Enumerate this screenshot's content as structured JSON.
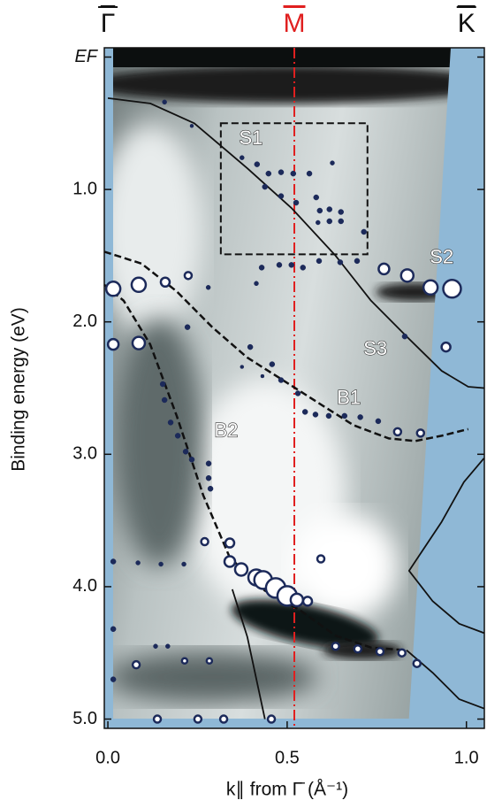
{
  "chart_data": {
    "type": "scatter",
    "xlabel": "k∥ from Γ̄ (Å⁻¹)",
    "ylabel": "Binding energy (eV)",
    "xlim": [
      -0.01,
      1.05
    ],
    "ylim": [
      -0.07,
      5.07
    ],
    "xticks": [
      {
        "value": 0,
        "label": "0.0"
      },
      {
        "value": 0.5,
        "label": "0.5"
      },
      {
        "value": 1,
        "label": "1.0"
      }
    ],
    "yticks": [
      {
        "value": 0,
        "label": "EF"
      },
      {
        "value": 1,
        "label": "1.0"
      },
      {
        "value": 2,
        "label": "2.0"
      },
      {
        "value": 3,
        "label": "3.0"
      },
      {
        "value": 4,
        "label": "4.0"
      },
      {
        "value": 5,
        "label": "5.0"
      }
    ],
    "symmetry_points": [
      {
        "label": "Γ",
        "x": 0,
        "color": "#111111"
      },
      {
        "label": "M",
        "x": 0.52,
        "color": "#e02020"
      },
      {
        "label": "K",
        "x": 1.0,
        "color": "#111111"
      }
    ],
    "color": "#1c2a5a",
    "open_points": {
      "x": [
        0.015,
        0.086,
        0.16,
        0.224,
        0.015,
        0.086,
        0.77,
        0.835,
        0.9,
        0.96,
        0.943,
        0.34,
        0.27,
        0.34,
        0.372,
        0.414,
        0.433,
        0.468,
        0.5,
        0.527,
        0.557,
        0.594,
        0.635,
        0.697,
        0.759,
        0.82,
        0.862,
        0.079,
        0.214,
        0.283,
        0.138,
        0.251,
        0.323,
        0.456,
        0.808,
        0.872
      ],
      "y": [
        1.75,
        1.72,
        1.7,
        1.65,
        2.17,
        2.16,
        1.6,
        1.65,
        1.74,
        1.75,
        2.19,
        3.67,
        3.66,
        3.81,
        3.87,
        3.93,
        3.95,
        4.01,
        4.07,
        4.1,
        4.11,
        3.79,
        4.45,
        4.47,
        4.49,
        4.5,
        4.58,
        4.59,
        4.56,
        4.56,
        5.0,
        5.0,
        5.0,
        5.0,
        2.83,
        2.84
      ],
      "size": [
        8,
        8,
        5,
        4,
        6,
        7,
        6,
        7,
        8,
        10,
        5,
        5,
        4,
        6,
        7,
        9,
        10,
        11,
        11,
        7,
        5,
        4,
        4,
        4,
        4,
        4,
        4,
        4,
        3,
        3,
        4,
        4,
        4,
        4,
        4,
        4
      ]
    },
    "filled_points": {
      "x": [
        0.158,
        0.234,
        0.374,
        0.416,
        0.448,
        0.483,
        0.517,
        0.562,
        0.626,
        0.438,
        0.483,
        0.525,
        0.581,
        0.591,
        0.618,
        0.65,
        0.618,
        0.65,
        0.586,
        0.714,
        0.429,
        0.478,
        0.512,
        0.544,
        0.589,
        0.648,
        0.695,
        0.414,
        0.28,
        0.222,
        0.397,
        0.458,
        0.483,
        0.53,
        0.55,
        0.579,
        0.616,
        0.66,
        0.704,
        0.754,
        0.828,
        0.153,
        0.158,
        0.175,
        0.195,
        0.217,
        0.234,
        0.281,
        0.281,
        0.286,
        0.084,
        0.148,
        0.212,
        0.015,
        0.015,
        0.015,
        0.133,
        0.167,
        0.374,
        0.431
      ],
      "y": [
        0.34,
        0.52,
        0.76,
        0.81,
        0.88,
        0.87,
        0.88,
        0.88,
        0.8,
        0.98,
        1.05,
        1.1,
        1.06,
        1.16,
        1.15,
        1.17,
        1.24,
        1.24,
        1.25,
        1.32,
        1.59,
        1.57,
        1.57,
        1.59,
        1.54,
        1.55,
        1.54,
        1.71,
        1.74,
        2.04,
        2.19,
        2.32,
        2.44,
        2.54,
        2.68,
        2.7,
        2.71,
        2.71,
        2.72,
        2.75,
        2.11,
        2.47,
        2.59,
        2.76,
        2.86,
        2.98,
        3.04,
        3.07,
        3.18,
        3.26,
        3.82,
        3.83,
        3.83,
        3.81,
        4.32,
        4.7,
        4.45,
        4.45,
        2.34,
        2.41
      ],
      "size": [
        2.5,
        2,
        2.5,
        3,
        3,
        3,
        3,
        3,
        2.5,
        3,
        3,
        3,
        3,
        3,
        3,
        3,
        3,
        3,
        2.5,
        3,
        3,
        3,
        3,
        3,
        3,
        3,
        3,
        2.5,
        2.5,
        3,
        3,
        3,
        3,
        3,
        3,
        3,
        3,
        3,
        3,
        3,
        3,
        3,
        3,
        3,
        3,
        3,
        3,
        3,
        3,
        3,
        2.5,
        2.5,
        2.5,
        3,
        3,
        3,
        2.5,
        2.5,
        2,
        2
      ]
    },
    "curves": [
      {
        "style": "solid",
        "x": [
          0,
          0.118,
          0.241,
          0.389,
          0.512,
          0.635,
          0.734,
          0.833,
          0.931,
          1.005,
          1.049
        ],
        "y": [
          0.31,
          0.35,
          0.5,
          0.84,
          1.14,
          1.5,
          1.84,
          2.11,
          2.37,
          2.49,
          2.5
        ]
      },
      {
        "style": "dashed",
        "x": [
          -0.01,
          0.094,
          0.192,
          0.291,
          0.389,
          0.488,
          0.586,
          0.685,
          0.783,
          0.857,
          0.931,
          1.005
        ],
        "y": [
          1.47,
          1.56,
          1.77,
          2.04,
          2.27,
          2.44,
          2.61,
          2.78,
          2.88,
          2.9,
          2.86,
          2.81
        ]
      },
      {
        "style": "dashed",
        "x": [
          -0.01,
          0.044,
          0.118,
          0.192,
          0.266,
          0.34,
          0.438,
          0.537,
          0.635,
          0.734,
          0.833
        ],
        "y": [
          1.72,
          1.84,
          2.17,
          2.71,
          3.31,
          3.78,
          4.03,
          4.18,
          4.37,
          4.46,
          4.48
        ]
      },
      {
        "style": "solid",
        "x": [
          0.347,
          0.389,
          0.438
        ],
        "y": [
          4.02,
          4.38,
          5.0
        ]
      },
      {
        "style": "solid",
        "x": [
          0.833,
          0.906,
          0.98,
          1.049
        ],
        "y": [
          4.48,
          4.65,
          4.85,
          4.92
        ]
      },
      {
        "style": "solid",
        "x": [
          1.049,
          0.993,
          0.931,
          0.84,
          0.906,
          0.98,
          1.049
        ],
        "y": [
          3.03,
          3.21,
          3.51,
          3.88,
          4.11,
          4.28,
          4.35
        ]
      }
    ],
    "box": {
      "x": [
        0.315,
        0.724
      ],
      "y": [
        0.5,
        1.49
      ]
    },
    "annotations": [
      {
        "text": "S1",
        "x": 0.399,
        "y": 0.62
      },
      {
        "text": "S2",
        "x": 0.931,
        "y": 1.52
      },
      {
        "text": "S3",
        "x": 0.746,
        "y": 2.21
      },
      {
        "text": "B1",
        "x": 0.672,
        "y": 2.58
      },
      {
        "text": "B2",
        "x": 0.33,
        "y": 2.83
      }
    ]
  }
}
